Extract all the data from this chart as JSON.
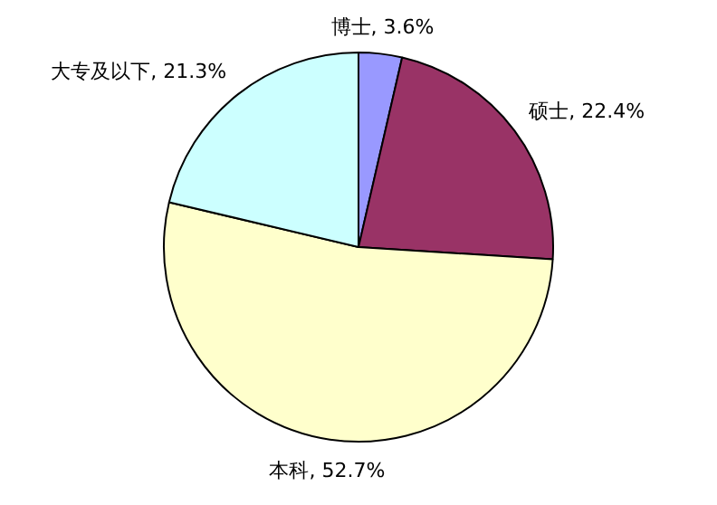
{
  "chart_data": {
    "type": "pie",
    "categories": [
      "博士",
      "硕士",
      "本科",
      "大专及以下"
    ],
    "values": [
      3.6,
      22.4,
      52.7,
      21.3
    ],
    "colors": [
      "#9999ff",
      "#993366",
      "#ffffcc",
      "#ccffff"
    ],
    "value_labels": [
      "3.6%",
      "22.4%",
      "52.7%",
      "21.3%"
    ],
    "legend": false
  }
}
